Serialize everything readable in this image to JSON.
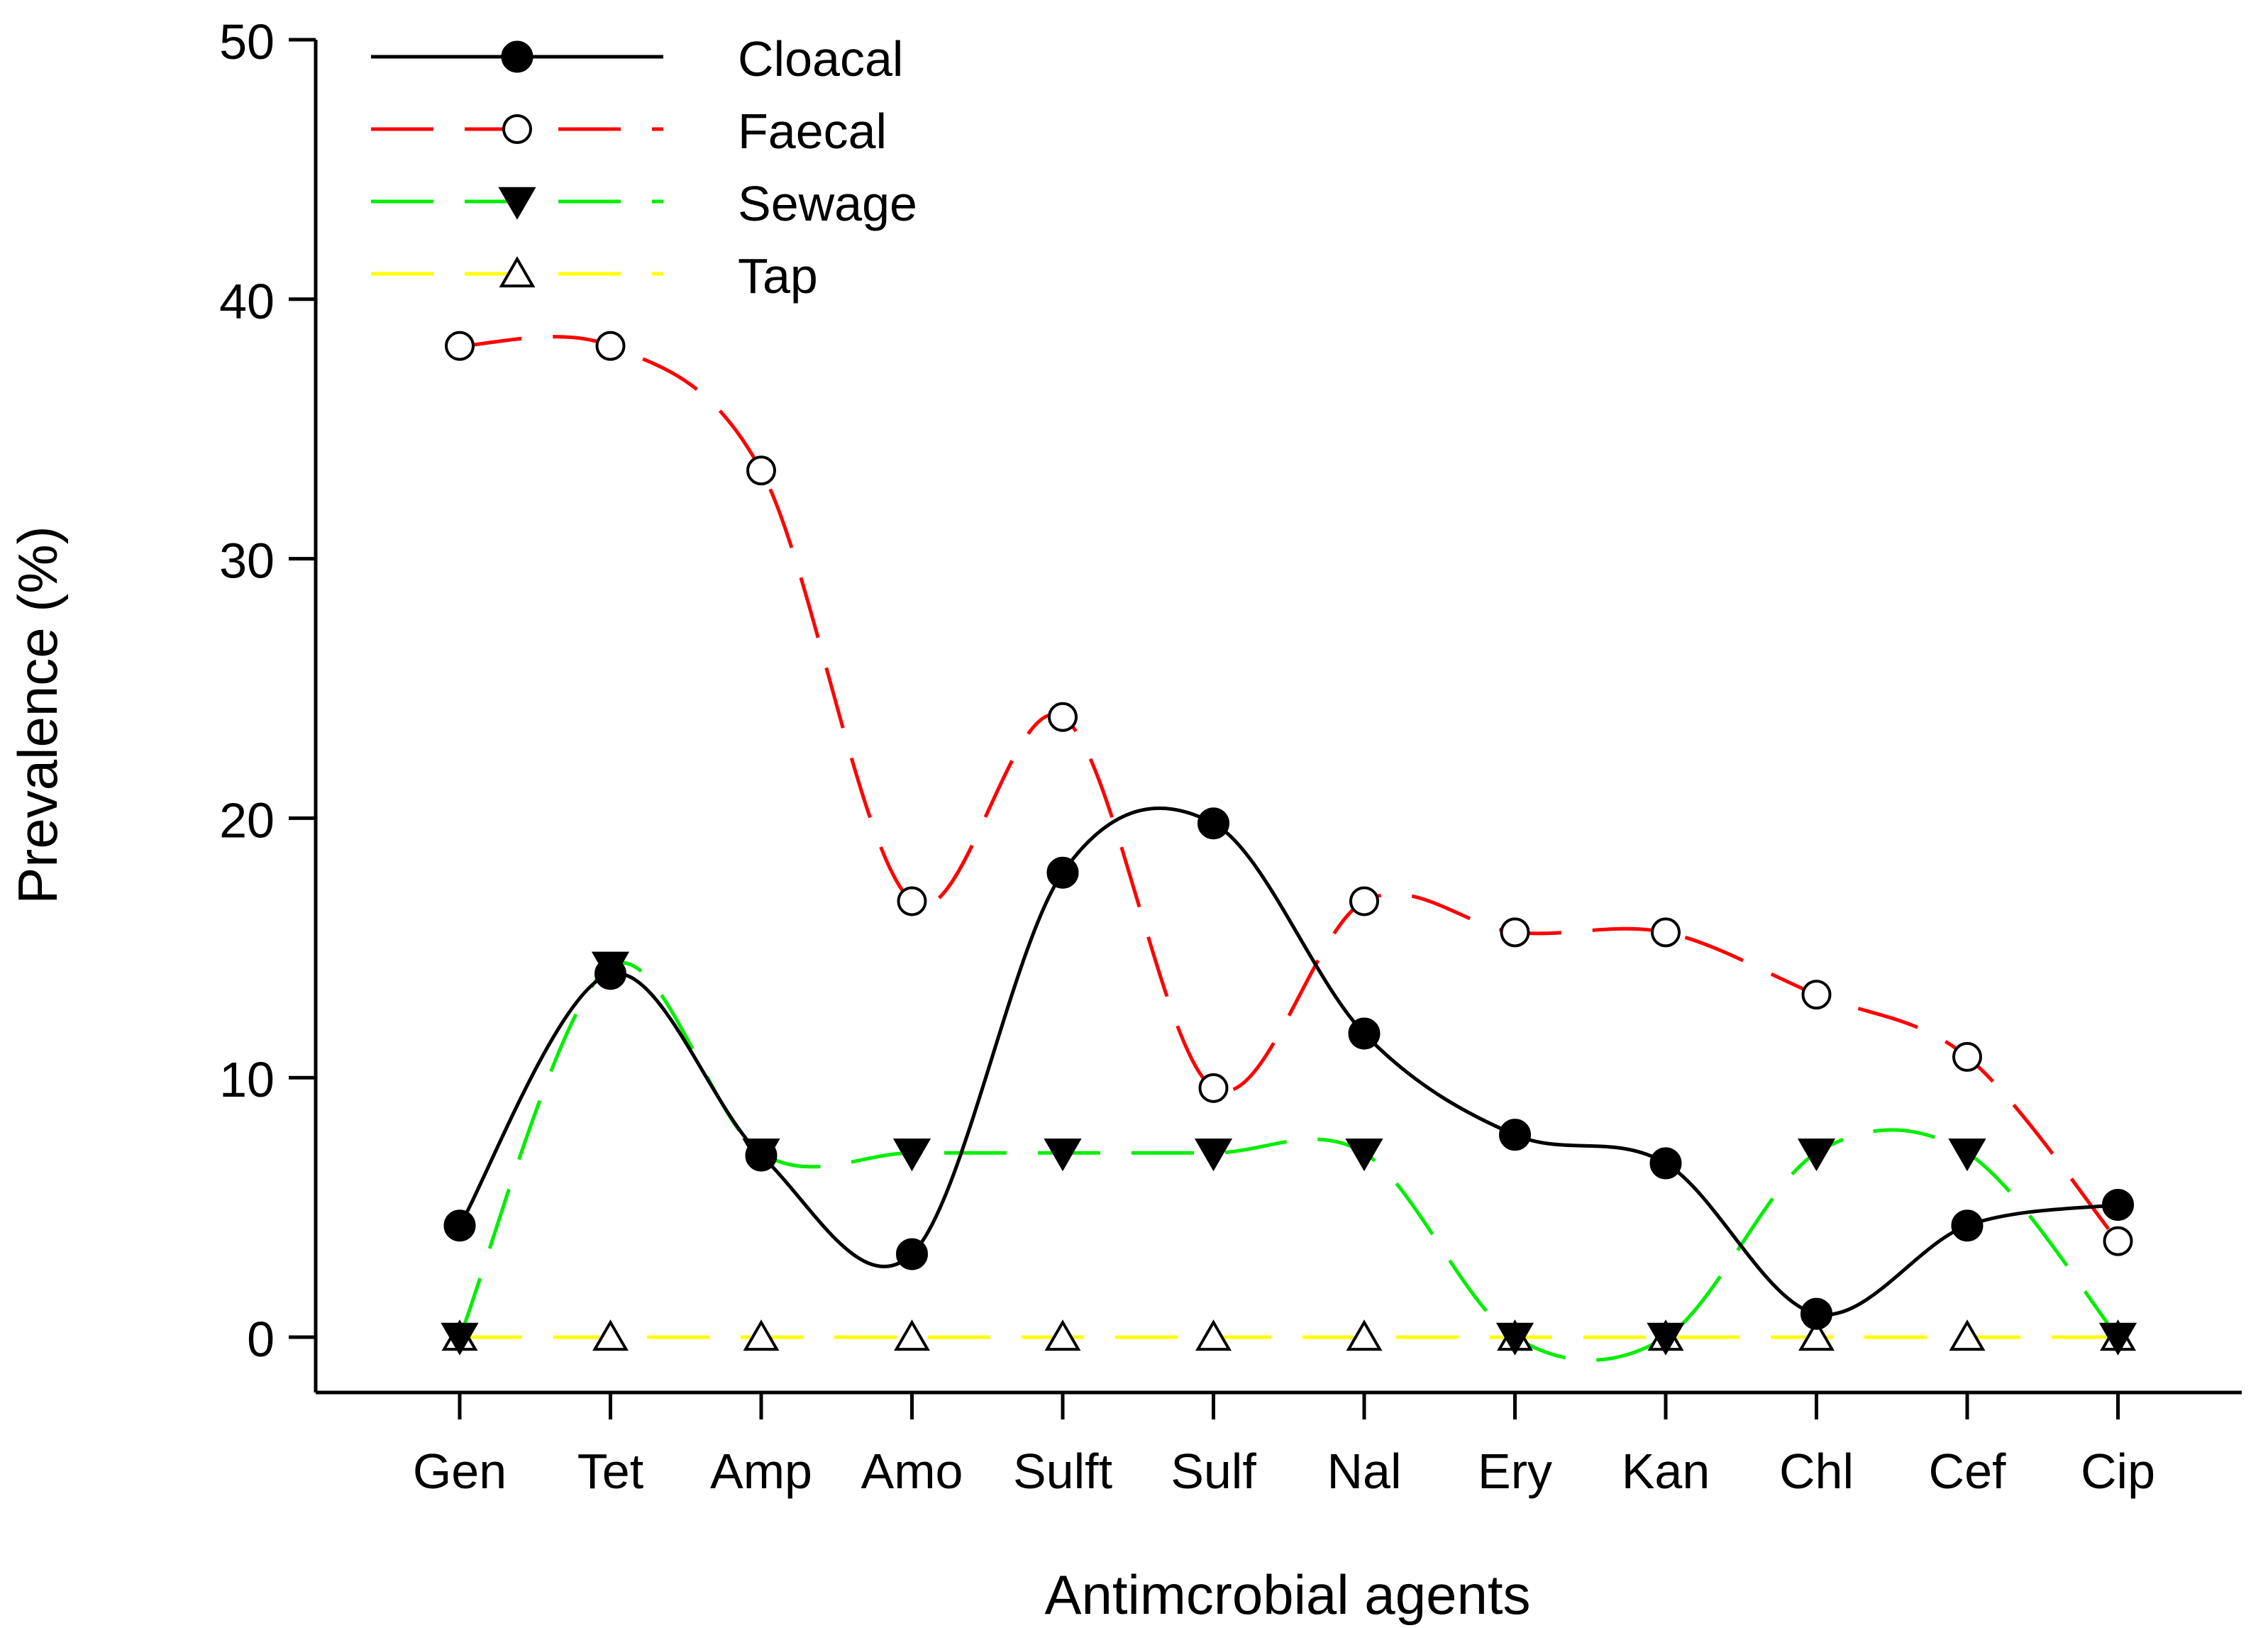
{
  "chart_data": {
    "type": "line",
    "title": "",
    "xlabel": "Antimcrobial agents",
    "ylabel": "Prevalence (%)",
    "ylim": [
      0,
      50
    ],
    "yticks": [
      0,
      10,
      20,
      30,
      40,
      50
    ],
    "categories": [
      "Gen",
      "Tet",
      "Amp",
      "Amo",
      "Sulft",
      "Sulf",
      "Nal",
      "Ery",
      "Kan",
      "Chl",
      "Cef",
      "Cip"
    ],
    "legend_position": "top-left",
    "series": [
      {
        "name": "Cloacal",
        "color": "#000000",
        "dash": "solid",
        "marker": "filled-circle",
        "values": [
          4.3,
          14.0,
          7.0,
          3.2,
          17.9,
          19.8,
          11.7,
          7.8,
          6.7,
          0.9,
          4.3,
          5.1
        ]
      },
      {
        "name": "Faecal",
        "color": "#ff0000",
        "dash": "long-dash",
        "marker": "open-circle",
        "values": [
          38.2,
          38.2,
          33.4,
          16.8,
          23.9,
          9.6,
          16.8,
          15.6,
          15.6,
          13.2,
          10.8,
          3.7
        ]
      },
      {
        "name": "Sewage",
        "color": "#00ee00",
        "dash": "long-dash",
        "marker": "filled-triangle-down",
        "values": [
          0,
          14.3,
          7.1,
          7.1,
          7.1,
          7.1,
          7.1,
          0,
          0,
          7.1,
          7.1,
          0
        ]
      },
      {
        "name": "Tap",
        "color": "#ffff00",
        "dash": "long-dash",
        "marker": "open-triangle-up",
        "values": [
          0,
          0,
          0,
          0,
          0,
          0,
          0,
          0,
          0,
          0,
          0,
          0
        ]
      }
    ]
  }
}
